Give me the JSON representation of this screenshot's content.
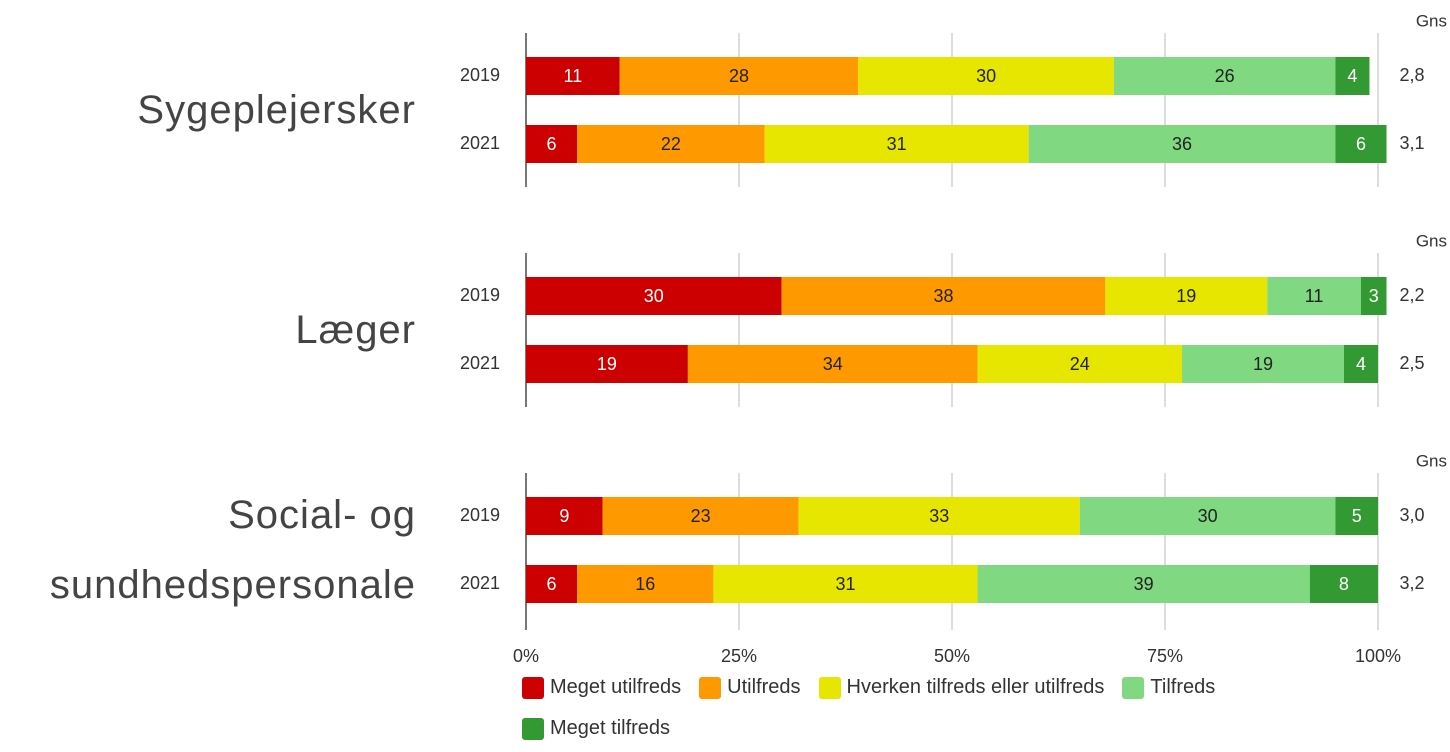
{
  "chart_data": {
    "type": "bar",
    "orientation": "horizontal",
    "stacked": true,
    "groups": [
      "Sygeplejersker",
      "Læger",
      "Social- og sundhedspersonale"
    ],
    "categories": [
      "2019",
      "2021",
      "2019",
      "2021",
      "2019",
      "2021"
    ],
    "series": [
      {
        "name": "Meget utilfreds",
        "color": "#cc0000",
        "values": [
          11,
          6,
          30,
          19,
          9,
          6
        ]
      },
      {
        "name": "Utilfreds",
        "color": "#ff9900",
        "values": [
          28,
          22,
          38,
          34,
          23,
          16
        ]
      },
      {
        "name": "Hverken tilfreds eller utilfreds",
        "color": "#e6e600",
        "values": [
          30,
          31,
          19,
          24,
          33,
          31
        ]
      },
      {
        "name": "Tilfreds",
        "color": "#80d880",
        "values": [
          26,
          36,
          11,
          19,
          30,
          39
        ]
      },
      {
        "name": "Meget tilfreds",
        "color": "#339933",
        "values": [
          4,
          6,
          3,
          4,
          5,
          8
        ]
      }
    ],
    "average": {
      "name": "Gns",
      "values": [
        2.8,
        3.1,
        2.2,
        2.5,
        3.0,
        3.2
      ],
      "value_labels": [
        "2,8",
        "3,1",
        "2,2",
        "2,5",
        "3,0",
        "3,2"
      ]
    },
    "xlim": [
      0,
      100
    ],
    "xticks": [
      {
        "value": 0,
        "label": "0%"
      },
      {
        "value": 25,
        "label": "25%"
      },
      {
        "value": 50,
        "label": "50%"
      },
      {
        "value": 75,
        "label": "75%"
      },
      {
        "value": 100,
        "label": "100%"
      }
    ],
    "grid": true
  }
}
